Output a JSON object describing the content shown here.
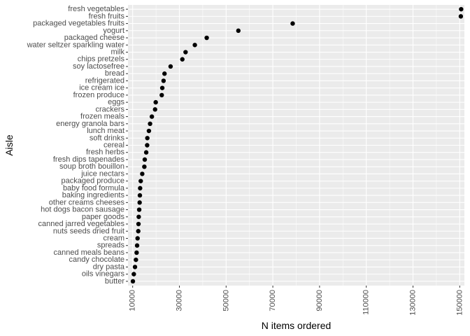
{
  "chart_data": {
    "type": "scatter",
    "title": "",
    "xlabel": "N items ordered",
    "ylabel": "Aisle",
    "xlim": [
      8000,
      152000
    ],
    "x_ticks": [
      10000,
      30000,
      50000,
      70000,
      90000,
      110000,
      130000,
      150000
    ],
    "x_tick_labels": [
      "10000",
      "30000",
      "50000",
      "70000",
      "90000",
      "110000",
      "130000",
      "150000"
    ],
    "grid": true,
    "legend": "none",
    "colors": {
      "panel_bg": "#ebebeb",
      "grid": "#ffffff",
      "point": "#000000"
    },
    "points": [
      {
        "aisle": "fresh vegetables",
        "n": 150609
      },
      {
        "aisle": "fresh fruits",
        "n": 150473
      },
      {
        "aisle": "packaged vegetables fruits",
        "n": 78493
      },
      {
        "aisle": "yogurt",
        "n": 55240
      },
      {
        "aisle": "packaged cheese",
        "n": 41699
      },
      {
        "aisle": "water seltzer sparkling water",
        "n": 36617
      },
      {
        "aisle": "milk",
        "n": 32644
      },
      {
        "aisle": "chips pretzels",
        "n": 31269
      },
      {
        "aisle": "soy lactosefree",
        "n": 26240
      },
      {
        "aisle": "bread",
        "n": 23635
      },
      {
        "aisle": "refrigerated",
        "n": 23228
      },
      {
        "aisle": "ice cream ice",
        "n": 22676
      },
      {
        "aisle": "frozen produce",
        "n": 22453
      },
      {
        "aisle": "eggs",
        "n": 19875
      },
      {
        "aisle": "crackers",
        "n": 19592
      },
      {
        "aisle": "frozen meals",
        "n": 18221
      },
      {
        "aisle": "energy granola bars",
        "n": 17449
      },
      {
        "aisle": "lunch meat",
        "n": 16957
      },
      {
        "aisle": "soft drinks",
        "n": 16279
      },
      {
        "aisle": "cereal",
        "n": 16201
      },
      {
        "aisle": "fresh herbs",
        "n": 15800
      },
      {
        "aisle": "fresh dips tapenades",
        "n": 15180
      },
      {
        "aisle": "soup broth bouillon",
        "n": 15000
      },
      {
        "aisle": "juice nectars",
        "n": 14100
      },
      {
        "aisle": "packaged produce",
        "n": 13460
      },
      {
        "aisle": "baby food formula",
        "n": 13198
      },
      {
        "aisle": "baking ingredients",
        "n": 13088
      },
      {
        "aisle": "other creams cheeses",
        "n": 12989
      },
      {
        "aisle": "hot dogs bacon sausage",
        "n": 12800
      },
      {
        "aisle": "paper goods",
        "n": 12600
      },
      {
        "aisle": "canned jarred vegetables",
        "n": 12500
      },
      {
        "aisle": "nuts seeds dried fruit",
        "n": 12400
      },
      {
        "aisle": "cream",
        "n": 12100
      },
      {
        "aisle": "spreads",
        "n": 11900
      },
      {
        "aisle": "canned meals beans",
        "n": 11700
      },
      {
        "aisle": "candy chocolate",
        "n": 11400
      },
      {
        "aisle": "dry pasta",
        "n": 11000
      },
      {
        "aisle": "oils vinegars",
        "n": 10500
      },
      {
        "aisle": "butter",
        "n": 10100
      }
    ]
  }
}
